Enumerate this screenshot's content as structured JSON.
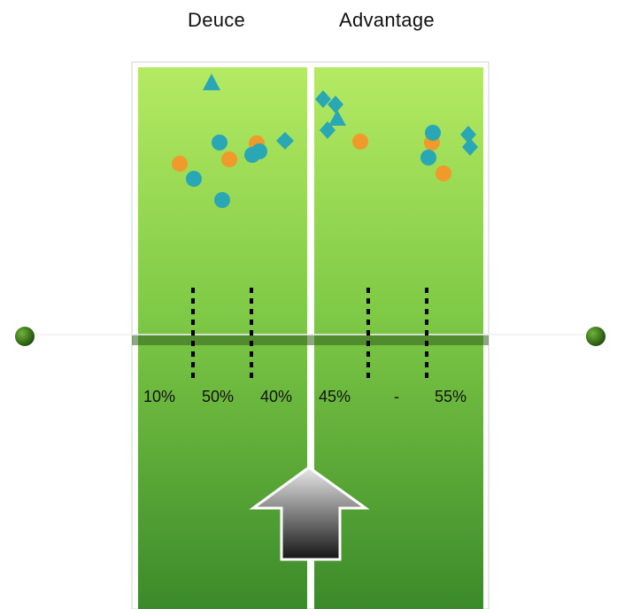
{
  "headers": {
    "deuce": "Deuce",
    "advantage": "Advantage"
  },
  "percentages": {
    "deuce": [
      "10%",
      "50%",
      "40%"
    ],
    "advantage": [
      "45%",
      "-",
      "55%"
    ]
  },
  "colors": {
    "court_top": "#b2e862",
    "court_bottom": "#3d8a2a",
    "teal": "#2aa7b4",
    "orange": "#ef9a2a",
    "net_cord": "#5a5a5a",
    "net_post": "#2f6a12"
  },
  "icons": {
    "arrow": "up-arrow-icon"
  },
  "markers": {
    "teal_circles": 8,
    "orange_circles": 6,
    "teal_diamonds": 6,
    "teal_triangles": 2
  }
}
